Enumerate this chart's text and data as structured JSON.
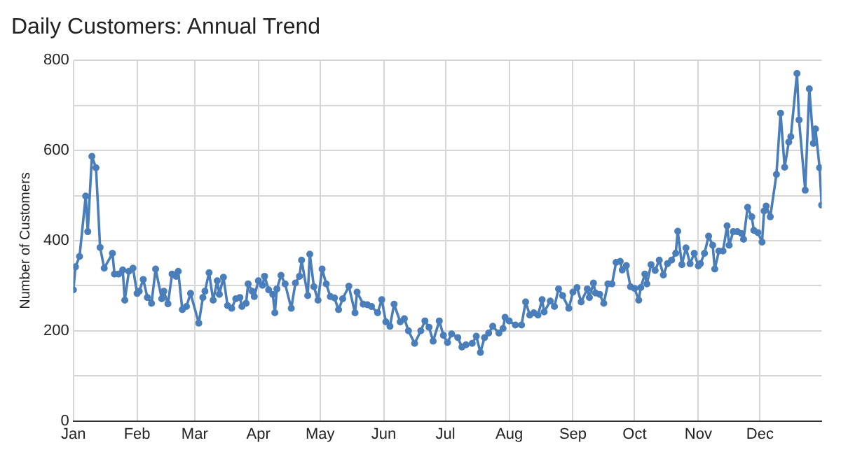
{
  "chart_data": {
    "type": "line",
    "title": "Daily Customers: Annual Trend",
    "ylabel": "Number of Customers",
    "x": [
      "--01-01",
      "--01-02",
      "--01-04",
      "--01-07",
      "--01-08",
      "--01-10",
      "--01-12",
      "--01-14",
      "--01-16",
      "--01-20",
      "--01-21",
      "--01-23",
      "--01-25",
      "--01-26",
      "--01-28",
      "--01-30",
      "--02-01",
      "--02-02",
      "--02-04",
      "--02-06",
      "--02-08",
      "--02-10",
      "--02-13",
      "--02-14",
      "--02-16",
      "--02-18",
      "--02-20",
      "--02-21",
      "--02-23",
      "--02-25",
      "--02-27",
      "--03-03",
      "--03-05",
      "--03-06",
      "--03-08",
      "--03-10",
      "--03-12",
      "--03-13",
      "--03-15",
      "--03-17",
      "--03-19",
      "--03-21",
      "--03-23",
      "--03-24",
      "--03-26",
      "--03-27",
      "--03-29",
      "--03-30",
      "--04-01",
      "--04-03",
      "--04-04",
      "--04-06",
      "--04-08",
      "--04-09",
      "--04-10",
      "--04-12",
      "--04-14",
      "--04-17",
      "--04-19",
      "--04-21",
      "--04-22",
      "--04-25",
      "--04-26",
      "--04-28",
      "--04-30",
      "--05-02",
      "--05-04",
      "--05-06",
      "--05-08",
      "--05-10",
      "--05-12",
      "--05-15",
      "--05-18",
      "--05-19",
      "--05-22",
      "--05-24",
      "--05-26",
      "--05-29",
      "--05-31",
      "--06-02",
      "--06-04",
      "--06-06",
      "--06-09",
      "--06-11",
      "--06-13",
      "--06-16",
      "--06-19",
      "--06-21",
      "--06-23",
      "--06-25",
      "--06-28",
      "--06-30",
      "--07-02",
      "--07-04",
      "--07-07",
      "--07-09",
      "--07-11",
      "--07-14",
      "--07-16",
      "--07-18",
      "--07-20",
      "--07-22",
      "--07-24",
      "--07-27",
      "--07-29",
      "--07-30",
      "--08-01",
      "--08-04",
      "--08-07",
      "--08-09",
      "--08-11",
      "--08-13",
      "--08-15",
      "--08-17",
      "--08-18",
      "--08-21",
      "--08-23",
      "--08-25",
      "--08-27",
      "--08-30",
      "--09-01",
      "--09-03",
      "--09-05",
      "--09-08",
      "--09-09",
      "--09-11",
      "--09-12",
      "--09-14",
      "--09-16",
      "--09-18",
      "--09-20",
      "--09-22",
      "--09-24",
      "--09-25",
      "--09-27",
      "--09-29",
      "--10-01",
      "--10-03",
      "--10-04",
      "--10-06",
      "--10-07",
      "--10-09",
      "--10-11",
      "--10-13",
      "--10-15",
      "--10-17",
      "--10-19",
      "--10-21",
      "--10-22",
      "--10-24",
      "--10-26",
      "--10-28",
      "--10-30",
      "--11-01",
      "--11-02",
      "--11-04",
      "--11-06",
      "--11-08",
      "--11-09",
      "--11-11",
      "--11-13",
      "--11-15",
      "--11-16",
      "--11-18",
      "--11-20",
      "--11-22",
      "--11-23",
      "--11-25",
      "--11-27",
      "--11-28",
      "--11-30",
      "--12-02",
      "--12-03",
      "--12-04",
      "--12-06",
      "--12-09",
      "--12-11",
      "--12-13",
      "--12-15",
      "--12-16",
      "--12-19",
      "--12-20",
      "--12-23",
      "--12-25",
      "--12-27",
      "--12-28",
      "--12-30",
      "--12-31"
    ],
    "series": [
      {
        "color": "#4a7ebb",
        "values": [
          291,
          342,
          365,
          499,
          420,
          587,
          562,
          385,
          339,
          372,
          326,
          326,
          335,
          268,
          332,
          339,
          283,
          288,
          314,
          274,
          261,
          337,
          271,
          288,
          260,
          326,
          321,
          332,
          247,
          254,
          283,
          217,
          274,
          288,
          329,
          268,
          311,
          281,
          319,
          256,
          250,
          271,
          274,
          254,
          261,
          304,
          288,
          276,
          311,
          301,
          321,
          291,
          281,
          240,
          293,
          323,
          304,
          250,
          306,
          321,
          357,
          278,
          370,
          298,
          268,
          337,
          304,
          276,
          273,
          247,
          271,
          299,
          240,
          286,
          259,
          258,
          254,
          240,
          269,
          220,
          210,
          259,
          220,
          227,
          200,
          172,
          200,
          222,
          208,
          177,
          222,
          190,
          174,
          193,
          185,
          164,
          169,
          172,
          188,
          152,
          185,
          195,
          210,
          195,
          205,
          230,
          222,
          213,
          213,
          264,
          235,
          240,
          235,
          269,
          242,
          266,
          254,
          293,
          278,
          250,
          286,
          296,
          264,
          293,
          274,
          306,
          284,
          281,
          261,
          304,
          304,
          352,
          354,
          335,
          345,
          298,
          294,
          268,
          296,
          326,
          304,
          347,
          334,
          357,
          324,
          349,
          357,
          372,
          421,
          347,
          384,
          349,
          372,
          344,
          349,
          372,
          410,
          390,
          337,
          377,
          377,
          433,
          390,
          420,
          420,
          416,
          403,
          474,
          453,
          423,
          418,
          397,
          466,
          477,
          453,
          547,
          683,
          563,
          619,
          631,
          771,
          668,
          512,
          737,
          616,
          648,
          562,
          479
        ]
      }
    ],
    "xlim": [
      "--01-01",
      "--12-31"
    ],
    "xticks": [
      {
        "value": "--01-01",
        "label": "Jan"
      },
      {
        "value": "--02-01",
        "label": "Feb"
      },
      {
        "value": "--03-01",
        "label": "Mar"
      },
      {
        "value": "--04-01",
        "label": "Apr"
      },
      {
        "value": "--05-01",
        "label": "May"
      },
      {
        "value": "--06-01",
        "label": "Jun"
      },
      {
        "value": "--07-01",
        "label": "Jul"
      },
      {
        "value": "--08-01",
        "label": "Aug"
      },
      {
        "value": "--09-01",
        "label": "Sep"
      },
      {
        "value": "--10-01",
        "label": "Oct"
      },
      {
        "value": "--11-01",
        "label": "Nov"
      },
      {
        "value": "--12-01",
        "label": "Dec"
      }
    ],
    "ylim": [
      0,
      800
    ],
    "yticks": [
      0,
      {
        "value": 100,
        "label": null
      },
      200,
      {
        "value": 300,
        "label": null
      },
      400,
      {
        "value": 500,
        "label": null
      },
      600,
      {
        "value": 700,
        "label": null
      },
      800
    ],
    "grid": true,
    "marker": "circle",
    "line_style": "solid",
    "legend": false
  }
}
